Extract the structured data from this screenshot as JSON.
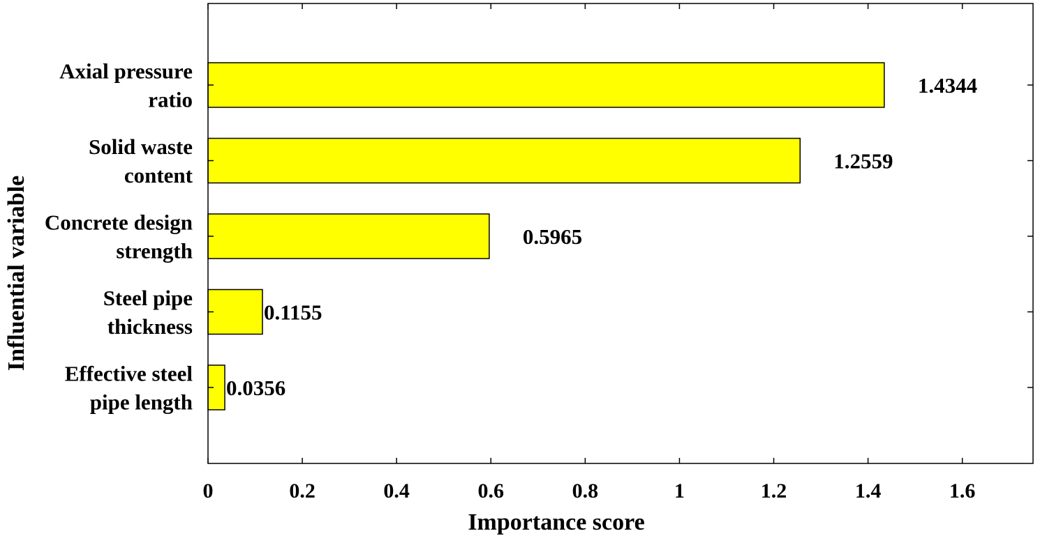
{
  "chart_data": {
    "type": "bar",
    "orientation": "horizontal",
    "xlabel": "Importance score",
    "ylabel": "Influential variable",
    "xlim": [
      0,
      1.75
    ],
    "xticks": [
      "0",
      "0.2",
      "0.4",
      "0.6",
      "0.8",
      "1",
      "1.2",
      "1.4",
      "1.6"
    ],
    "grid": false,
    "legend": "none",
    "bar_color": "#ffff00",
    "bar_edge_color": "#000000",
    "categories": [
      {
        "lines": [
          "Axial pressure",
          "ratio"
        ]
      },
      {
        "lines": [
          "Solid waste",
          "content"
        ]
      },
      {
        "lines": [
          "Concrete design",
          "strength"
        ]
      },
      {
        "lines": [
          "Steel pipe",
          "thickness"
        ]
      },
      {
        "lines": [
          "Effective steel",
          "pipe length"
        ]
      }
    ],
    "values": [
      1.4344,
      1.2559,
      0.5965,
      0.1155,
      0.0356
    ],
    "value_labels": [
      "1.4344",
      "1.2559",
      "0.5965",
      "0.1155",
      "0.0356"
    ]
  }
}
